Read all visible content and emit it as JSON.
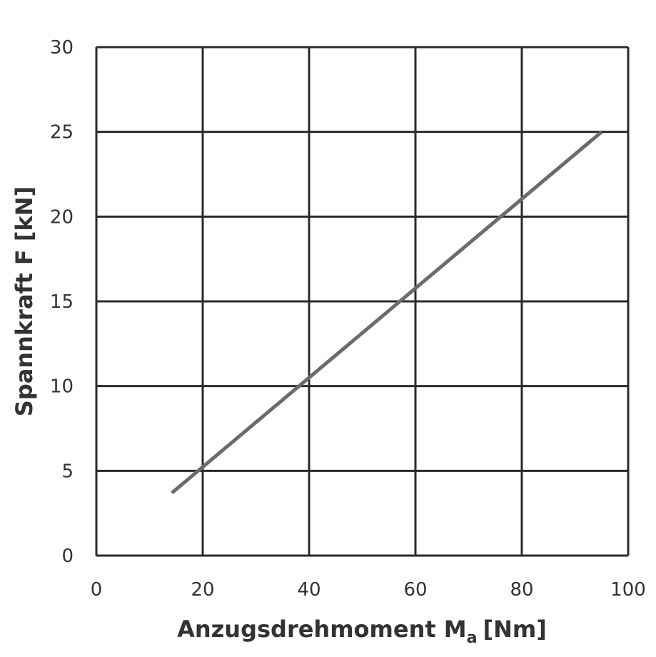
{
  "chart_data": {
    "type": "line",
    "title": "",
    "xlabel": "Anzugsdrehmoment M",
    "xlabel_subscript": "a",
    "xlabel_unit": "[Nm]",
    "ylabel": "Spannkraft F [kN]",
    "xlim": [
      0,
      100
    ],
    "ylim": [
      0,
      30
    ],
    "x_ticks": [
      0,
      20,
      40,
      60,
      80,
      100
    ],
    "y_ticks": [
      0,
      5,
      10,
      15,
      20,
      25,
      30
    ],
    "grid": true,
    "series": [
      {
        "color": "#6b6b6b",
        "points": [
          [
            14.2,
            3.7
          ],
          [
            95,
            25
          ]
        ]
      }
    ]
  },
  "colors": {
    "grid": "#2b2b2b",
    "text": "#333333",
    "line": "#6b6b6b"
  }
}
